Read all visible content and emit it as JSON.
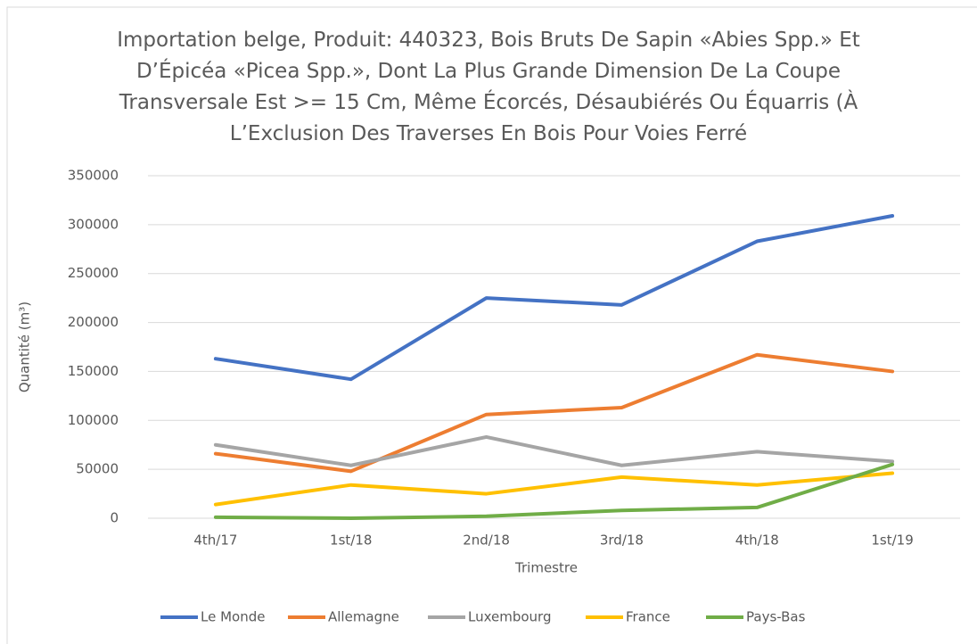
{
  "chart_data": {
    "type": "line",
    "title": "Importation belge, Produit: 440323, Bois Bruts De Sapin «Abies Spp.» Et D’Épicéa «Picea Spp.», Dont La Plus Grande Dimension De La Coupe Transversale Est >= 15 Cm, Même Écorcés, Désaubiérés Ou Équarris (À L’Exclusion Des Traverses En Bois Pour Voies Ferré",
    "x_label": "Trimestre",
    "y_label": "Quantité (m³)",
    "categories": [
      "4th/17",
      "1st/18",
      "2nd/18",
      "3rd/18",
      "4th/18",
      "1st/19"
    ],
    "series": [
      {
        "name": "Le Monde",
        "color": "#4472c4",
        "values": [
          163000,
          142000,
          225000,
          218000,
          283000,
          309000
        ]
      },
      {
        "name": "Allemagne",
        "color": "#ed7d31",
        "values": [
          66000,
          48000,
          106000,
          113000,
          167000,
          150000
        ]
      },
      {
        "name": "Luxembourg",
        "color": "#a5a5a5",
        "values": [
          75000,
          54000,
          83000,
          54000,
          68000,
          58000
        ]
      },
      {
        "name": "France",
        "color": "#ffc000",
        "values": [
          14000,
          34000,
          25000,
          42000,
          34000,
          46000
        ]
      },
      {
        "name": "Pays-Bas",
        "color": "#70ad47",
        "values": [
          1000,
          0,
          2000,
          8000,
          11000,
          55000
        ]
      }
    ],
    "ylim": [
      0,
      350000
    ],
    "yticks": [
      0,
      50000,
      100000,
      150000,
      200000,
      250000,
      300000,
      350000
    ],
    "grid": true,
    "legend": "bottom"
  }
}
